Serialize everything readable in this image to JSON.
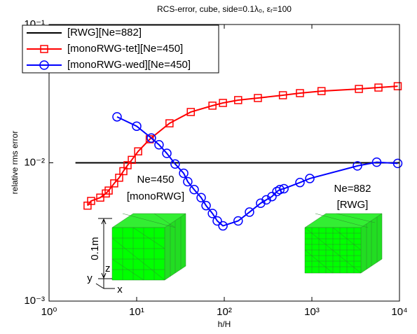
{
  "chart_data": {
    "type": "line",
    "title": "RCS-error, cube, side=0.1λ₀, εᵣ=100",
    "x_label": "h/H",
    "y_label": "relative rms error",
    "log_x": true,
    "log_y": true,
    "legend": "upper left",
    "xlim": [
      1,
      10000
    ],
    "ylim": [
      0.001,
      0.1
    ],
    "xticks": [
      {
        "value": 1,
        "label": "10⁰"
      },
      {
        "value": 10,
        "label": "10¹"
      },
      {
        "value": 100,
        "label": "10²"
      },
      {
        "value": 1000,
        "label": "10³"
      },
      {
        "value": 10000,
        "label": "10⁴"
      }
    ],
    "yticks": [
      {
        "value": 0.001,
        "label": "10⁻³"
      },
      {
        "value": 0.01,
        "label": "10⁻²"
      },
      {
        "value": 0.1,
        "label": "10⁻¹"
      }
    ],
    "series": [
      {
        "name": "[RWG][Ne=882]",
        "color": "#000000",
        "marker": "none",
        "x": [
          2,
          10000
        ],
        "values": [
          0.01,
          0.01
        ]
      },
      {
        "name": "[monoRWG-tet][Ne=450]",
        "color": "#ff0000",
        "marker": "square",
        "x": [
          2.75,
          3.02,
          3.84,
          4.45,
          4.79,
          5.54,
          6.31,
          7.05,
          7.87,
          8.8,
          10.4,
          14.1,
          23.7,
          41.5,
          73.3,
          96.6,
          144,
          242,
          467,
          731,
          1288,
          3442,
          5754,
          9550
        ],
        "values": [
          0.0049,
          0.0053,
          0.0056,
          0.006,
          0.0063,
          0.0071,
          0.0078,
          0.0087,
          0.0096,
          0.0105,
          0.0121,
          0.0148,
          0.0193,
          0.0233,
          0.0259,
          0.0271,
          0.0284,
          0.0294,
          0.0308,
          0.0319,
          0.033,
          0.0342,
          0.035,
          0.0358
        ]
      },
      {
        "name": "[monoRWG-wed][Ne=450]",
        "color": "#0000ff",
        "marker": "circle",
        "x": [
          5.97,
          10,
          14.7,
          18,
          22.1,
          27.5,
          34.4,
          38.3,
          45.3,
          54.5,
          62,
          73.3,
          83.2,
          96.6,
          144,
          194,
          260,
          302,
          350,
          399,
          431,
          480,
          731,
          947,
          3311,
          5495,
          9550
        ],
        "values": [
          0.0215,
          0.0184,
          0.0151,
          0.0135,
          0.0117,
          0.0098,
          0.0084,
          0.0073,
          0.0064,
          0.0056,
          0.0049,
          0.0043,
          0.0038,
          0.0035,
          0.0038,
          0.0044,
          0.0051,
          0.0054,
          0.0057,
          0.0062,
          0.0064,
          0.0065,
          0.0072,
          0.0077,
          0.0095,
          0.0101,
          0.0099
        ]
      }
    ],
    "annotations": [
      "Ne=450",
      "[monoRWG]",
      "Ne=882",
      "[RWG]",
      "0.1m",
      "z",
      "y",
      "x"
    ]
  }
}
